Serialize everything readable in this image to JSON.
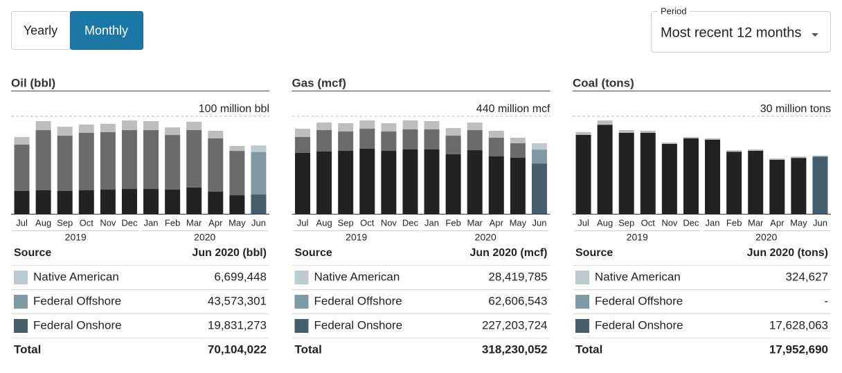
{
  "controls": {
    "toggle": [
      "Yearly",
      "Monthly"
    ],
    "active": 1,
    "period_label": "Period",
    "period_value": "Most recent 12 months"
  },
  "chart_data": [
    {
      "type": "bar",
      "stacked": true,
      "title": "Oil (bbl)",
      "categories": [
        "Jul",
        "Aug",
        "Sep",
        "Oct",
        "Nov",
        "Dec",
        "Jan",
        "Feb",
        "Mar",
        "Apr",
        "May",
        "Jun"
      ],
      "years": [
        "2019",
        "2020"
      ],
      "ylim": [
        0,
        100000000
      ],
      "yticks": [
        {
          "value": 100000000,
          "label": "100 million bbl"
        }
      ],
      "series": [
        {
          "name": "Federal Onshore",
          "color": "#445f6b",
          "base_color": "#222222",
          "values": [
            23400000,
            24100000,
            23400000,
            24100000,
            24800000,
            25500000,
            25500000,
            24800000,
            27000000,
            22700000,
            19100000,
            19831273
          ]
        },
        {
          "name": "Federal Offshore",
          "color": "#7f9aa4",
          "base_color": "#6b6b6b",
          "values": [
            47500000,
            61700000,
            56700000,
            58900000,
            58900000,
            60300000,
            60300000,
            56000000,
            58900000,
            54600000,
            45400000,
            43573301
          ]
        },
        {
          "name": "Native American",
          "color": "#bccbd0",
          "base_color": "#bdbdbd",
          "values": [
            7800000,
            9200000,
            9200000,
            8500000,
            8500000,
            9900000,
            9200000,
            7800000,
            8500000,
            7800000,
            5000000,
            6699448
          ]
        }
      ],
      "table": {
        "header": [
          "Source",
          "Jun 2020 (bbl)"
        ],
        "rows": [
          [
            "Native American",
            "6,699,448"
          ],
          [
            "Federal Offshore",
            "43,573,301"
          ],
          [
            "Federal Onshore",
            "19,831,273"
          ]
        ],
        "total": [
          "Total",
          "70,104,022"
        ]
      }
    },
    {
      "type": "bar",
      "stacked": true,
      "title": "Gas (mcf)",
      "categories": [
        "Jul",
        "Aug",
        "Sep",
        "Oct",
        "Nov",
        "Dec",
        "Jan",
        "Feb",
        "Mar",
        "Apr",
        "May",
        "Jun"
      ],
      "years": [
        "2019",
        "2020"
      ],
      "ylim": [
        0,
        440000000
      ],
      "yticks": [
        {
          "value": 440000000,
          "label": "440 million mcf"
        }
      ],
      "series": [
        {
          "name": "Federal Onshore",
          "color": "#445f6b",
          "base_color": "#222222",
          "values": [
            274600000,
            280800000,
            283900000,
            293300000,
            283900000,
            290200000,
            290200000,
            268300000,
            287000000,
            259000000,
            252700000,
            227203724
          ]
        },
        {
          "name": "Federal Offshore",
          "color": "#7f9aa4",
          "base_color": "#6b6b6b",
          "values": [
            71800000,
            96700000,
            87400000,
            90500000,
            87400000,
            90500000,
            90500000,
            84200000,
            90500000,
            84200000,
            65500000,
            62606543
          ]
        },
        {
          "name": "Native American",
          "color": "#bccbd0",
          "base_color": "#bdbdbd",
          "values": [
            37400000,
            34300000,
            37400000,
            37400000,
            37400000,
            40600000,
            37400000,
            34300000,
            34300000,
            31200000,
            25000000,
            28419785
          ]
        }
      ],
      "table": {
        "header": [
          "Source",
          "Jun 2020 (mcf)"
        ],
        "rows": [
          [
            "Native American",
            "28,419,785"
          ],
          [
            "Federal Offshore",
            "62,606,543"
          ],
          [
            "Federal Onshore",
            "227,203,724"
          ]
        ],
        "total": [
          "Total",
          "318,230,052"
        ]
      }
    },
    {
      "type": "bar",
      "stacked": true,
      "title": "Coal (tons)",
      "categories": [
        "Jul",
        "Aug",
        "Sep",
        "Oct",
        "Nov",
        "Dec",
        "Jan",
        "Feb",
        "Mar",
        "Apr",
        "May",
        "Jun"
      ],
      "years": [
        "2019",
        "2020"
      ],
      "ylim": [
        0,
        30000000
      ],
      "yticks": [
        {
          "value": 30000000,
          "label": "30 million tons"
        }
      ],
      "series": [
        {
          "name": "Federal Onshore",
          "color": "#445f6b",
          "base_color": "#222222",
          "values": [
            24300000,
            27400000,
            24900000,
            24900000,
            21500000,
            23200000,
            22800000,
            19100000,
            19400000,
            16600000,
            17200000,
            17628063
          ]
        },
        {
          "name": "Federal Offshore",
          "color": "#7f9aa4",
          "base_color": "#6b6b6b",
          "values": [
            0,
            0,
            0,
            0,
            0,
            0,
            0,
            0,
            0,
            0,
            0,
            0
          ]
        },
        {
          "name": "Native American",
          "color": "#bccbd0",
          "base_color": "#bdbdbd",
          "values": [
            850000,
            1300000,
            850000,
            640000,
            430000,
            430000,
            430000,
            430000,
            430000,
            430000,
            430000,
            324627
          ]
        }
      ],
      "table": {
        "header": [
          "Source",
          "Jun 2020 (tons)"
        ],
        "rows": [
          [
            "Native American",
            "324,627"
          ],
          [
            "Federal Offshore",
            "-"
          ],
          [
            "Federal Onshore",
            "17,628,063"
          ]
        ],
        "total": [
          "Total",
          "17,952,690"
        ]
      }
    }
  ]
}
